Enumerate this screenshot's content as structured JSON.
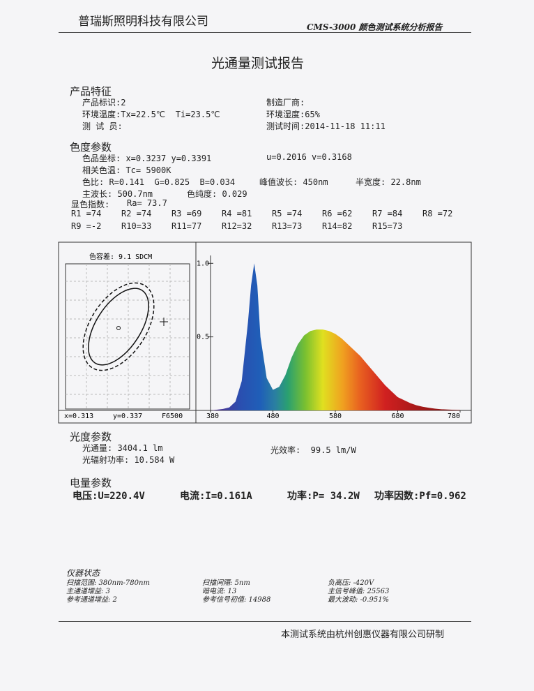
{
  "header": {
    "company": "普瑞斯照明科技有限公司",
    "system": "CMS-3000 颜色测试系统分析报告"
  },
  "title": "光通量测试报告",
  "product": {
    "heading": "产品特征",
    "id": "产品标识:2",
    "maker": "制造厂商:",
    "temperature": "环境温度:Tx=22.5℃  Ti=23.5℃",
    "humidity": "环境湿度:65%",
    "tester": "测 试 员:",
    "time": "测试时间:2014-11-18 11:11"
  },
  "color": {
    "heading": "色度参数",
    "xy": "色品坐标: x=0.3237 y=0.3391",
    "uv": "u=0.2016 v=0.3168",
    "cct": "相关色温: Tc= 5900K",
    "ratio": "色比: R=0.141  G=0.825  B=0.034",
    "peak": "峰值波长: 450nm",
    "halfwidth": "半宽度: 22.8nm",
    "dominant": "主波长: 500.7nm",
    "purity": "色纯度: 0.029",
    "cri_label": "显色指数:",
    "ra": "Ra= 73.7",
    "ri": [
      "R1 =74",
      "R2 =74",
      "R3 =69",
      "R4 =81",
      "R5 =74",
      "R6 =62",
      "R7 =84",
      "R8 =72",
      "R9 =-2",
      "R10=33",
      "R11=77",
      "R12=32",
      "R13=73",
      "R14=82",
      "R15=73"
    ]
  },
  "tolerance": {
    "label": "色容差:  9.1 SDCM",
    "x": "x=0.313",
    "y": "y=0.337",
    "standard": "F6500"
  },
  "spectrum": {
    "type": "area",
    "x": [
      380,
      390,
      400,
      410,
      420,
      430,
      440,
      445,
      450,
      455,
      460,
      470,
      480,
      490,
      500,
      510,
      520,
      530,
      540,
      550,
      560,
      570,
      580,
      590,
      600,
      610,
      620,
      630,
      640,
      650,
      660,
      670,
      680,
      690,
      700,
      710,
      720,
      730,
      740,
      750,
      760,
      770,
      780
    ],
    "values": [
      0,
      0.005,
      0.01,
      0.02,
      0.06,
      0.2,
      0.6,
      0.85,
      1.0,
      0.85,
      0.5,
      0.22,
      0.14,
      0.16,
      0.24,
      0.36,
      0.45,
      0.51,
      0.54,
      0.55,
      0.55,
      0.54,
      0.52,
      0.49,
      0.45,
      0.41,
      0.37,
      0.32,
      0.27,
      0.22,
      0.17,
      0.13,
      0.09,
      0.07,
      0.05,
      0.035,
      0.025,
      0.018,
      0.012,
      0.008,
      0.006,
      0.004,
      0.003
    ],
    "xlim": [
      380,
      780
    ],
    "ylim": [
      0,
      1.12
    ],
    "xticks": [
      380,
      480,
      580,
      680,
      780
    ],
    "yticks": [
      0.5,
      {
        "value": 1,
        "label": "1.0"
      }
    ]
  },
  "photometric": {
    "heading": "光度参数",
    "flux": "光通量: 3404.1 lm",
    "efficacy": "光效率:  99.5 lm/W",
    "radiant": "光辐射功率: 10.584 W"
  },
  "electric": {
    "heading": "电量参数",
    "voltage": "电压:U=220.4V",
    "current": "电流:I=0.161A",
    "power": "功率:P= 34.2W",
    "pf": "功率因数:Pf=0.962"
  },
  "instrument": {
    "heading": "仪器状态",
    "items": [
      "扫描范围: 380nm-780nm",
      "主通道增益: 3",
      "参考通道增益: 2",
      "扫描间隔: 5nm",
      "暗电流: 13",
      "参考信号初值: 14988",
      "负高压: -420V",
      "主信号峰值: 25563",
      "最大波动: -0.951%"
    ]
  },
  "footer": "本测试系统由杭州创惠仪器有限公司研制"
}
